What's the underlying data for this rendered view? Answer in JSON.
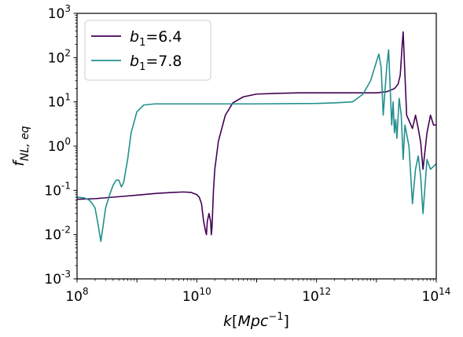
{
  "chart_data": {
    "type": "line",
    "xlabel": "k[Mpc^-1]",
    "ylabel": "f_NL,eq",
    "x_scale": "log",
    "y_scale": "log",
    "xlim": [
      100000000.0,
      100000000000000.0
    ],
    "ylim": [
      0.001,
      1000.0
    ],
    "grid": false,
    "legend_position": "top-left",
    "x_ticks": [
      {
        "value": 100000000.0,
        "base": "10",
        "exp": "8"
      },
      {
        "value": 10000000000.0,
        "base": "10",
        "exp": "10"
      },
      {
        "value": 1000000000000.0,
        "base": "10",
        "exp": "12"
      },
      {
        "value": 100000000000000.0,
        "base": "10",
        "exp": "14"
      }
    ],
    "y_ticks": [
      {
        "value": 0.001,
        "mantissa": "10",
        "exp": "-3"
      },
      {
        "value": 0.01,
        "mantissa": "10",
        "exp": "-2"
      },
      {
        "value": 0.1,
        "mantissa": "10",
        "exp": "-1"
      },
      {
        "value": 1,
        "mantissa": "10",
        "exp": "0"
      },
      {
        "value": 10,
        "mantissa": "10",
        "exp": "1"
      },
      {
        "value": 100,
        "mantissa": "10",
        "exp": "2"
      },
      {
        "value": 1000,
        "mantissa": "10",
        "exp": "3"
      }
    ],
    "series": [
      {
        "name": "b1=6.4",
        "label_symbol": "b",
        "label_sub": "1",
        "label_value": "=6.4",
        "color": "#440154",
        "x": [
          100000000.0,
          200000000.0,
          500000000.0,
          1000000000.0,
          2000000000.0,
          4000000000.0,
          6000000000.0,
          8000000000.0,
          10000000000.0,
          11000000000.0,
          12000000000.0,
          13000000000.0,
          14000000000.0,
          14500000000.0,
          15000000000.0,
          16000000000.0,
          17000000000.0,
          17500000000.0,
          18000000000.0,
          18500000000.0,
          19000000000.0,
          20000000000.0,
          23000000000.0,
          30000000000.0,
          40000000000.0,
          60000000000.0,
          100000000000.0,
          200000000000.0,
          500000000000.0,
          1000000000000.0,
          3000000000000.0,
          6000000000000.0,
          10000000000000.0,
          15000000000000.0,
          20000000000000.0,
          23000000000000.0,
          25000000000000.0,
          26000000000000.0,
          27000000000000.0,
          28000000000000.0,
          30000000000000.0,
          32000000000000.0,
          40000000000000.0,
          45000000000000.0,
          50000000000000.0,
          55000000000000.0,
          60000000000000.0,
          70000000000000.0,
          80000000000000.0,
          90000000000000.0,
          100000000000000.0
        ],
        "y": [
          0.063,
          0.065,
          0.072,
          0.078,
          0.085,
          0.09,
          0.092,
          0.09,
          0.08,
          0.07,
          0.05,
          0.02,
          0.012,
          0.01,
          0.02,
          0.03,
          0.02,
          0.01,
          0.015,
          0.04,
          0.1,
          0.3,
          1.3,
          5,
          9.5,
          13,
          15,
          15.5,
          16,
          16,
          16,
          16,
          16,
          17,
          20,
          25,
          40,
          90,
          200,
          380,
          40,
          5,
          2.5,
          5,
          2.5,
          1.2,
          0.3,
          2,
          5,
          3,
          3
        ]
      },
      {
        "name": "b1=7.8",
        "label_symbol": "b",
        "label_sub": "1",
        "label_value": "=7.8",
        "color": "#21908d",
        "x": [
          100000000.0,
          130000000.0,
          160000000.0,
          180000000.0,
          200000000.0,
          220000000.0,
          250000000.0,
          300000000.0,
          350000000.0,
          400000000.0,
          450000000.0,
          500000000.0,
          550000000.0,
          600000000.0,
          700000000.0,
          800000000.0,
          1000000000.0,
          1300000000.0,
          2000000000.0,
          4000000000.0,
          10000000000.0,
          100000000000.0,
          1000000000000.0,
          2000000000000.0,
          4000000000000.0,
          6000000000000.0,
          8000000000000.0,
          10000000000000.0,
          11000000000000.0,
          12000000000000.0,
          13000000000000.0,
          14000000000000.0,
          15000000000000.0,
          16000000000000.0,
          17000000000000.0,
          18000000000000.0,
          19000000000000.0,
          20000000000000.0,
          21000000000000.0,
          22000000000000.0,
          24000000000000.0,
          26000000000000.0,
          28000000000000.0,
          30000000000000.0,
          35000000000000.0,
          40000000000000.0,
          45000000000000.0,
          50000000000000.0,
          55000000000000.0,
          60000000000000.0,
          70000000000000.0,
          80000000000000.0,
          100000000000000.0
        ],
        "y": [
          0.07,
          0.068,
          0.06,
          0.05,
          0.04,
          0.02,
          0.007,
          0.04,
          0.08,
          0.13,
          0.17,
          0.17,
          0.12,
          0.15,
          0.5,
          2,
          6,
          8.5,
          9,
          9,
          9,
          9,
          9.2,
          9.5,
          10,
          15,
          30,
          80,
          120,
          60,
          5,
          20,
          70,
          150,
          20,
          3,
          10,
          2,
          4,
          1.5,
          12,
          5,
          0.5,
          3,
          1,
          0.05,
          0.3,
          0.6,
          0.2,
          0.03,
          0.5,
          0.3,
          0.4
        ]
      }
    ]
  }
}
